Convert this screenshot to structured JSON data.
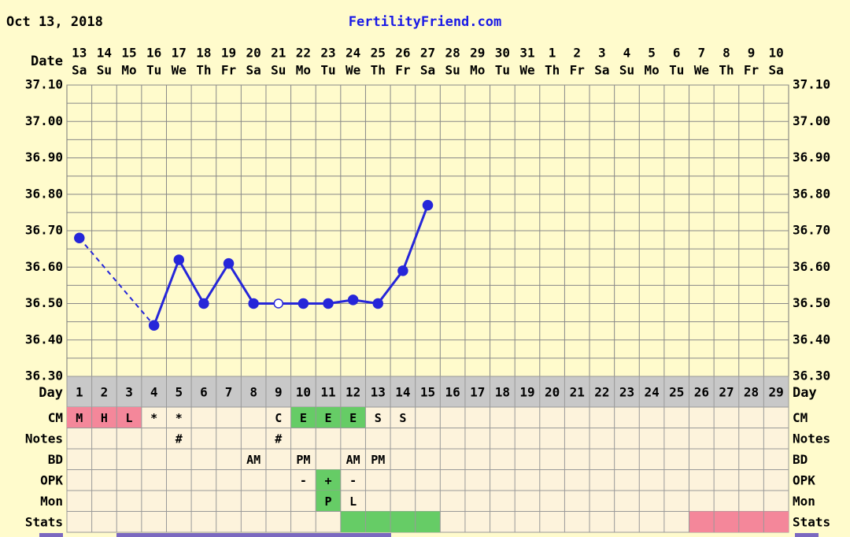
{
  "header": {
    "date": "Oct 13, 2018",
    "site": "FertilityFriend.com"
  },
  "chart_data": {
    "type": "line",
    "x_label": "Date",
    "categories": [
      "13",
      "14",
      "15",
      "16",
      "17",
      "18",
      "19",
      "20",
      "21",
      "22",
      "23",
      "24",
      "25",
      "26",
      "27",
      "28",
      "29",
      "30",
      "31",
      "1",
      "2",
      "3",
      "4",
      "5",
      "6",
      "7",
      "8",
      "9",
      "10"
    ],
    "weekdays": [
      "Sa",
      "Su",
      "Mo",
      "Tu",
      "We",
      "Th",
      "Fr",
      "Sa",
      "Su",
      "Mo",
      "Tu",
      "We",
      "Th",
      "Fr",
      "Sa",
      "Su",
      "Mo",
      "Tu",
      "We",
      "Th",
      "Fr",
      "Sa",
      "Su",
      "Mo",
      "Tu",
      "We",
      "Th",
      "Fr",
      "Sa"
    ],
    "series": [
      {
        "color": "#2626d9",
        "values": [
          36.68,
          null,
          null,
          36.44,
          36.62,
          36.5,
          36.61,
          36.5,
          36.5,
          36.5,
          36.5,
          36.51,
          36.5,
          36.59,
          36.77,
          null,
          null,
          null,
          null,
          null,
          null,
          null,
          null,
          null,
          null,
          null,
          null,
          null,
          null
        ]
      }
    ],
    "open_point_days": [
      9
    ],
    "dashed_gaps": true,
    "ylim": [
      36.3,
      37.1
    ],
    "yticks": [
      {
        "value": 36.3,
        "label": "36.30"
      },
      {
        "value": 36.4,
        "label": "36.40"
      },
      {
        "value": 36.5,
        "label": "36.50"
      },
      {
        "value": 36.6,
        "label": "36.60"
      },
      {
        "value": 36.7,
        "label": "36.70"
      },
      {
        "value": 36.8,
        "label": "36.80"
      },
      {
        "value": 36.9,
        "label": "36.90"
      },
      {
        "value": 37.0,
        "label": "37.00"
      },
      {
        "value": 37.1,
        "label": "37.10"
      }
    ],
    "minor_yticks": [
      36.35,
      36.45,
      36.55,
      36.65,
      36.75,
      36.85,
      36.95,
      37.05
    ],
    "grid": true
  },
  "table": {
    "day_label": "Day",
    "days": [
      1,
      2,
      3,
      4,
      5,
      6,
      7,
      8,
      9,
      10,
      11,
      12,
      13,
      14,
      15,
      16,
      17,
      18,
      19,
      20,
      21,
      22,
      23,
      24,
      25,
      26,
      27,
      28,
      29
    ],
    "rows": [
      {
        "label": "CM",
        "entries": [
          {
            "day": 1,
            "text": "M",
            "color": "#f4879a"
          },
          {
            "day": 2,
            "text": "H",
            "color": "#f4879a"
          },
          {
            "day": 3,
            "text": "L",
            "color": "#f4879a"
          },
          {
            "day": 4,
            "text": "*"
          },
          {
            "day": 5,
            "text": "*"
          },
          {
            "day": 9,
            "text": "C"
          },
          {
            "day": 10,
            "text": "E",
            "color": "#66cc66"
          },
          {
            "day": 11,
            "text": "E",
            "color": "#66cc66"
          },
          {
            "day": 12,
            "text": "E",
            "color": "#66cc66"
          },
          {
            "day": 13,
            "text": "S"
          },
          {
            "day": 14,
            "text": "S"
          }
        ]
      },
      {
        "label": "Notes",
        "entries": [
          {
            "day": 5,
            "text": "#"
          },
          {
            "day": 9,
            "text": "#"
          }
        ]
      },
      {
        "label": "BD",
        "entries": [
          {
            "day": 8,
            "text": "AM"
          },
          {
            "day": 10,
            "text": "PM"
          },
          {
            "day": 12,
            "text": "AM"
          },
          {
            "day": 13,
            "text": "PM"
          }
        ]
      },
      {
        "label": "OPK",
        "entries": [
          {
            "day": 10,
            "text": "-"
          },
          {
            "day": 11,
            "text": "+",
            "color": "#66cc66"
          },
          {
            "day": 12,
            "text": "-"
          }
        ]
      },
      {
        "label": "Mon",
        "entries": [
          {
            "day": 11,
            "text": "P",
            "color": "#66cc66"
          },
          {
            "day": 12,
            "text": "L"
          }
        ]
      },
      {
        "label": "Stats",
        "entries": [
          {
            "day": 12,
            "color": "#66cc66"
          },
          {
            "day": 13,
            "color": "#66cc66"
          },
          {
            "day": 14,
            "color": "#66cc66"
          },
          {
            "day": 15,
            "color": "#66cc66"
          },
          {
            "day": 26,
            "color": "#f4879a"
          },
          {
            "day": 27,
            "color": "#f4879a"
          },
          {
            "day": 28,
            "color": "#f4879a"
          },
          {
            "day": 29,
            "color": "#f4879a"
          }
        ]
      }
    ]
  }
}
